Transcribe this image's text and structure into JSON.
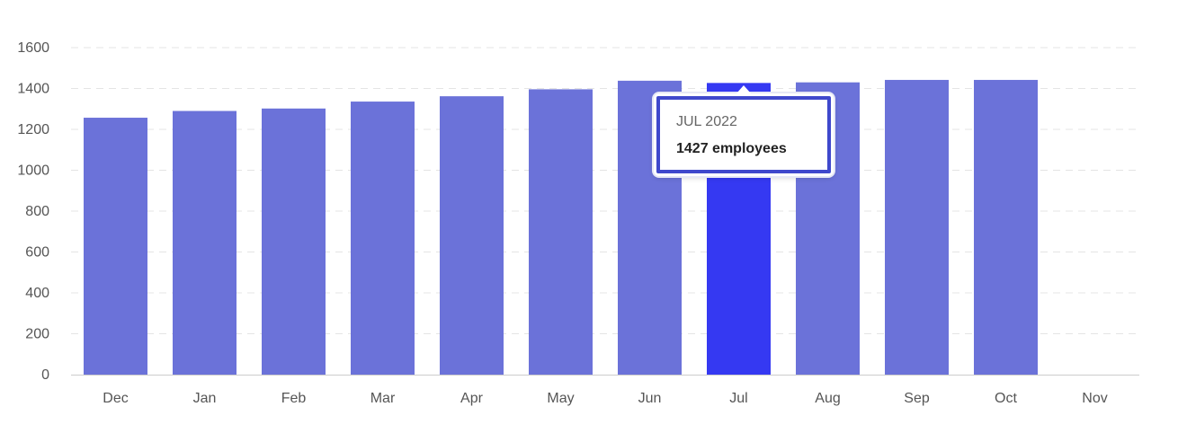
{
  "chart_data": {
    "type": "bar",
    "categories": [
      "Dec",
      "Jan",
      "Feb",
      "Mar",
      "Apr",
      "May",
      "Jun",
      "Jul",
      "Aug",
      "Sep",
      "Oct",
      "Nov"
    ],
    "values": [
      1257,
      1290,
      1302,
      1336,
      1362,
      1396,
      1438,
      1427,
      1430,
      1442,
      1442,
      null
    ],
    "yticks": [
      0,
      200,
      400,
      600,
      800,
      1000,
      1200,
      1400,
      1600
    ],
    "ylim": [
      0,
      1600
    ],
    "grid": true,
    "colors": {
      "bar": "#6b72d9",
      "highlight": "#3539f2",
      "grid": "#e4e4e4",
      "axis": "#cccccc",
      "text": "#555555"
    },
    "highlighted_index": 7
  },
  "tooltip": {
    "period": "JUL 2022",
    "value": "1427 employees"
  }
}
